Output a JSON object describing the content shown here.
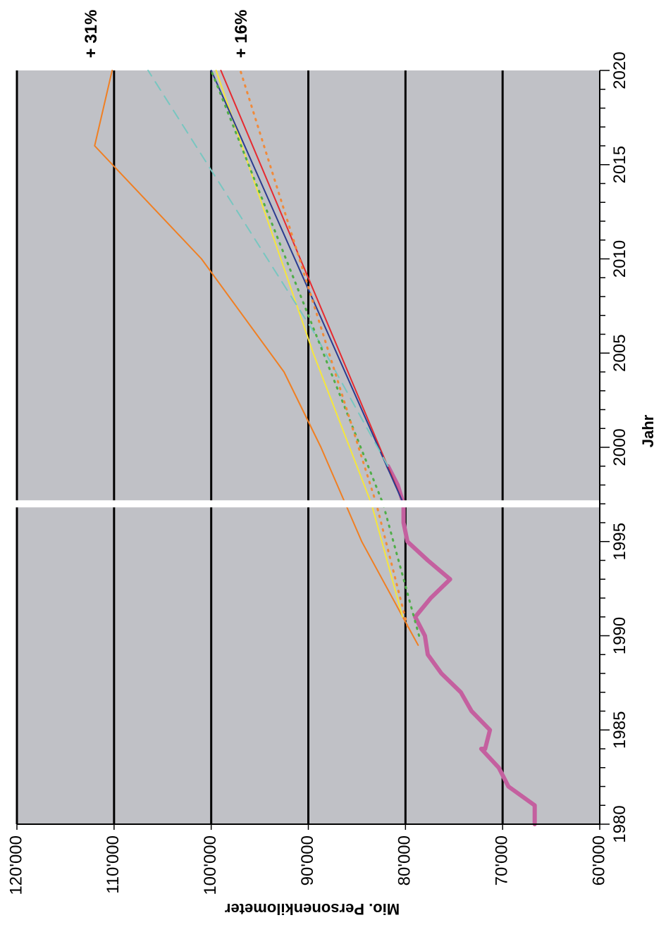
{
  "chart_data": {
    "type": "line",
    "orientation": "rotated-90-clockwise",
    "xlabel": "Jahr",
    "ylabel": "Mio. Personenkilometer",
    "xlim": [
      1980,
      2020
    ],
    "ylim": [
      60000,
      120000
    ],
    "x_ticks": [
      "1980",
      "1985",
      "1990",
      "1995",
      "2000",
      "2005",
      "2010",
      "2015",
      "2020"
    ],
    "y_ticks": [
      "60'000",
      "70'000",
      "80'000",
      "90'000",
      "100'000",
      "110'000",
      "120'000"
    ],
    "grid": true,
    "plot_background": "#c0c1c6",
    "divider_year": 1997,
    "annotations": [
      "+ 31%",
      "+ 16%"
    ],
    "series": [
      {
        "color": "#c4609f",
        "style": "solid-thick",
        "points": [
          [
            1980,
            66700
          ],
          [
            1981,
            66700
          ],
          [
            1982,
            69400
          ],
          [
            1983,
            70400
          ],
          [
            1984,
            72200
          ],
          [
            1984,
            71800
          ],
          [
            1985,
            71300
          ],
          [
            1986,
            73200
          ],
          [
            1987,
            74300
          ],
          [
            1988,
            76300
          ],
          [
            1989,
            77700
          ],
          [
            1990,
            78000
          ],
          [
            1991,
            79000
          ],
          [
            1992,
            77400
          ],
          [
            1993,
            75400
          ],
          [
            1994,
            77700
          ],
          [
            1995,
            79800
          ],
          [
            1996,
            80200
          ],
          [
            1997,
            80200
          ],
          [
            1998,
            80800
          ],
          [
            1999,
            81800
          ]
        ]
      },
      {
        "color": "#f07f22",
        "style": "solid",
        "points": [
          [
            1989.5,
            78700
          ],
          [
            1995,
            84500
          ],
          [
            2000,
            88700
          ],
          [
            2004,
            92500
          ],
          [
            2010,
            101000
          ],
          [
            2016,
            112000
          ],
          [
            2020,
            110200
          ]
        ]
      },
      {
        "color": "#f5e63c",
        "style": "solid",
        "points": [
          [
            1991,
            80300
          ],
          [
            1997,
            83500
          ],
          [
            2005,
            89500
          ],
          [
            2020,
            99500
          ]
        ]
      },
      {
        "color": "#e6292f",
        "style": "solid",
        "points": [
          [
            1997,
            80200
          ],
          [
            2020,
            99000
          ]
        ]
      },
      {
        "color": "#2b3b8f",
        "style": "solid",
        "points": [
          [
            1997,
            80200
          ],
          [
            2020,
            100000
          ]
        ]
      },
      {
        "color": "#78c6c0",
        "style": "dashed",
        "points": [
          [
            1999,
            81800
          ],
          [
            2006,
            89300
          ],
          [
            2020,
            106500
          ]
        ]
      },
      {
        "color": "#4fae48",
        "style": "dotted",
        "points": [
          [
            1990,
            78600
          ],
          [
            1997,
            82300
          ],
          [
            2020,
            100000
          ]
        ]
      },
      {
        "color": "#f08a3a",
        "style": "dotted",
        "points": [
          [
            1990.5,
            79800
          ],
          [
            1997,
            83000
          ],
          [
            2020,
            97000
          ]
        ]
      }
    ]
  }
}
